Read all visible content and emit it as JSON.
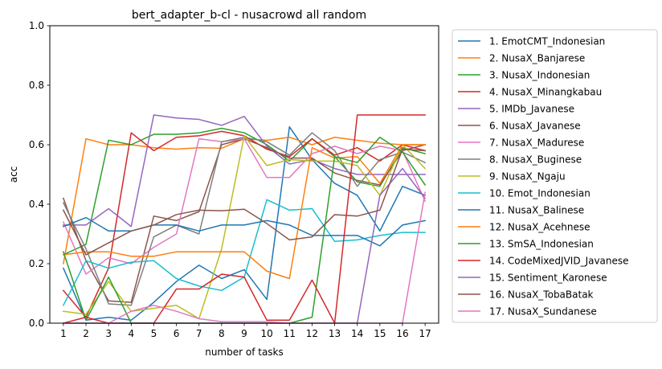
{
  "chart_data": {
    "type": "line",
    "title": "bert_adapter_b-cl - nusacrowd all random",
    "xlabel": "number of tasks",
    "ylabel": "acc",
    "x": [
      1,
      2,
      3,
      4,
      5,
      6,
      7,
      8,
      9,
      10,
      11,
      12,
      13,
      14,
      15,
      16,
      17
    ],
    "xlim": [
      0.4,
      17.6
    ],
    "ylim": [
      0.0,
      1.0
    ],
    "yticks": [
      0.0,
      0.2,
      0.4,
      0.6,
      0.8,
      1.0
    ],
    "ytick_labels": [
      "0.0",
      "0.2",
      "0.4",
      "0.6",
      "0.8",
      "1.0"
    ],
    "grid": false,
    "legend_position": "outside-right",
    "series": [
      {
        "name": "1. EmotCMT_Indonesian",
        "color": "#1f77b4",
        "values": [
          0.185,
          0.01,
          0.02,
          0.01,
          0.07,
          0.14,
          0.195,
          0.15,
          0.18,
          0.08,
          0.66,
          0.55,
          0.47,
          0.43,
          0.31,
          0.46,
          0.43
        ]
      },
      {
        "name": "2. NusaX_Banjarese",
        "color": "#ff7f0e",
        "values": [
          0.2,
          0.62,
          0.6,
          0.6,
          0.59,
          0.585,
          0.59,
          0.588,
          0.62,
          0.615,
          0.625,
          0.6,
          0.625,
          0.615,
          0.605,
          0.6,
          0.6
        ]
      },
      {
        "name": "3. NusaX_Indonesian",
        "color": "#2ca02c",
        "values": [
          0.23,
          0.265,
          0.615,
          0.6,
          0.635,
          0.635,
          0.64,
          0.655,
          0.64,
          0.6,
          0.545,
          0.62,
          0.56,
          0.475,
          0.46,
          0.59,
          0.57
        ]
      },
      {
        "name": "4. NusaX_Minangkabau",
        "color": "#d62728",
        "values": [
          0.11,
          0.02,
          0.185,
          0.64,
          0.58,
          0.625,
          0.63,
          0.645,
          0.63,
          0.585,
          0.56,
          0.62,
          0.565,
          0.59,
          0.545,
          0.6,
          0.58
        ]
      },
      {
        "name": "5. IMDb_Javanese",
        "color": "#9467bd",
        "values": [
          0.33,
          0.33,
          0.385,
          0.325,
          0.7,
          0.69,
          0.685,
          0.665,
          0.695,
          0.595,
          0.535,
          0.55,
          0.52,
          0.5,
          0.5,
          0.5,
          0.5
        ]
      },
      {
        "name": "6. NusaX_Javanese",
        "color": "#8c564b",
        "values": [
          0.42,
          0.21,
          0.075,
          0.07,
          0.36,
          0.345,
          0.375,
          0.6,
          0.62,
          0.59,
          0.555,
          0.555,
          0.505,
          0.48,
          0.465,
          0.58,
          0.6
        ]
      },
      {
        "name": "7. NusaX_Madurese",
        "color": "#e377c2",
        "values": [
          0.34,
          0.165,
          0.22,
          0.2,
          0.255,
          0.3,
          0.62,
          0.61,
          0.62,
          0.49,
          0.49,
          0.57,
          0.595,
          0.57,
          0.595,
          0.58,
          0.41
        ]
      },
      {
        "name": "8. NusaX_Buginese",
        "color": "#7f7f7f",
        "values": [
          0.405,
          0.25,
          0.065,
          0.06,
          0.29,
          0.33,
          0.3,
          0.61,
          0.625,
          0.61,
          0.565,
          0.64,
          0.58,
          0.46,
          0.55,
          0.575,
          0.54
        ]
      },
      {
        "name": "9. NusaX_Ngaju",
        "color": "#bcbd22",
        "values": [
          0.04,
          0.03,
          0.14,
          0.04,
          0.05,
          0.06,
          0.015,
          0.25,
          0.63,
          0.53,
          0.55,
          0.545,
          0.545,
          0.53,
          0.43,
          0.6,
          0.52
        ]
      },
      {
        "name": "10. Emot_Indonesian",
        "color": "#17becf",
        "values": [
          0.06,
          0.21,
          0.185,
          0.205,
          0.21,
          0.15,
          0.125,
          0.11,
          0.155,
          0.415,
          0.38,
          0.385,
          0.275,
          0.28,
          0.295,
          0.305,
          0.305
        ]
      },
      {
        "name": "11. NusaX_Balinese",
        "color": "#1f77b4",
        "values": [
          0.325,
          0.355,
          0.31,
          0.31,
          0.33,
          0.33,
          0.31,
          0.33,
          0.33,
          0.345,
          0.33,
          0.295,
          0.295,
          0.295,
          0.26,
          0.33,
          0.345
        ]
      },
      {
        "name": "12. NusaX_Acehnese",
        "color": "#ff7f0e",
        "values": [
          0.23,
          0.24,
          0.24,
          0.225,
          0.225,
          0.24,
          0.24,
          0.24,
          0.24,
          0.175,
          0.15,
          0.59,
          0.555,
          0.56,
          0.47,
          0.6,
          0.6
        ]
      },
      {
        "name": "13. SmSA_Indonesian",
        "color": "#2ca02c",
        "values": [
          0.24,
          0.01,
          0.155,
          0.0,
          0.0,
          0.0,
          0.0,
          0.0,
          0.0,
          0.0,
          0.0,
          0.02,
          0.56,
          0.54,
          0.625,
          0.575,
          0.465
        ]
      },
      {
        "name": "14. CodeMixedJVID_Javanese",
        "color": "#d62728",
        "values": [
          0.0,
          0.02,
          0.0,
          0.0,
          0.0,
          0.115,
          0.115,
          0.165,
          0.155,
          0.01,
          0.01,
          0.145,
          0.0,
          0.7,
          0.7,
          0.7,
          0.7
        ]
      },
      {
        "name": "15. Sentiment_Karonese",
        "color": "#9467bd",
        "values": [
          0.0,
          0.0,
          0.0,
          0.0,
          0.0,
          0.0,
          0.0,
          0.0,
          0.0,
          0.0,
          0.0,
          0.0,
          0.0,
          0.0,
          0.43,
          0.52,
          0.42
        ]
      },
      {
        "name": "16. NusaX_TobaBatak",
        "color": "#8c564b",
        "values": [
          0.38,
          0.23,
          0.27,
          0.31,
          0.33,
          0.365,
          0.38,
          0.378,
          0.383,
          0.335,
          0.28,
          0.29,
          0.365,
          0.36,
          0.38,
          0.585,
          0.58
        ]
      },
      {
        "name": "17. NusaX_Sundanese",
        "color": "#e377c2",
        "values": [
          0.0,
          0.0,
          0.0,
          0.04,
          0.06,
          0.04,
          0.015,
          0.005,
          0.005,
          0.005,
          0.0,
          0.0,
          0.0,
          0.0,
          0.0,
          0.0,
          0.44
        ]
      }
    ]
  }
}
